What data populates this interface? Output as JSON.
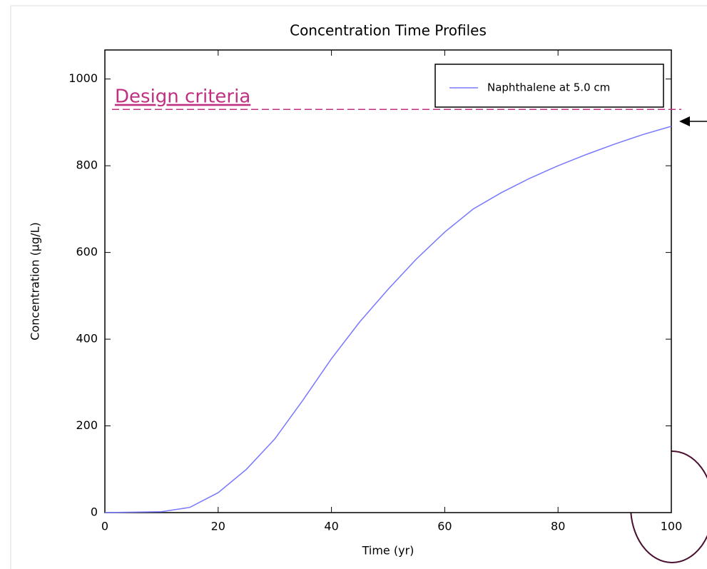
{
  "chart_data": {
    "type": "line",
    "title": "Concentration Time Profiles",
    "x_label": "Time (yr)",
    "y_label": "Concentration (µg/L)",
    "x": [
      0,
      10,
      15,
      20,
      25,
      30,
      35,
      40,
      45,
      50,
      55,
      60,
      65,
      70,
      75,
      80,
      85,
      90,
      95,
      100
    ],
    "series": [
      {
        "name": "Naphthalene at 5.0 cm",
        "color": "#7878ff",
        "values": [
          0,
          2,
          12,
          46,
          100,
          170,
          260,
          355,
          440,
          515,
          585,
          647,
          700,
          738,
          771,
          800,
          826,
          850,
          872,
          891
        ]
      }
    ],
    "xlim": [
      0,
      100
    ],
    "xticks": [
      0,
      20,
      40,
      60,
      80,
      100
    ],
    "ylim": [
      0,
      1067
    ],
    "yticks": [
      0,
      200,
      400,
      600,
      800,
      1000
    ],
    "legend": "upper right",
    "annotation": {
      "text": "Design criteria",
      "value": 930,
      "color": "#c03080"
    }
  }
}
